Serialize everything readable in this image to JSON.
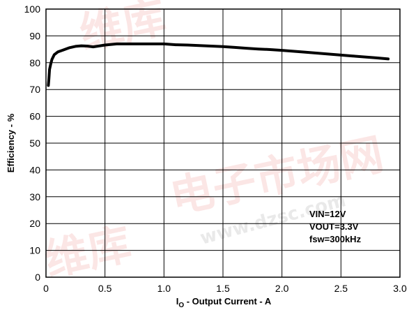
{
  "chart_data": {
    "type": "line",
    "xlabel_main": "I",
    "xlabel_sub": "O",
    "xlabel_rest": " - Output Current - A",
    "ylabel": "Efficiency - %",
    "xlim": [
      0,
      3.0
    ],
    "ylim": [
      0,
      100
    ],
    "x_ticks": [
      "0",
      "0.5",
      "1.0",
      "1.5",
      "2.0",
      "2.5",
      "3.0"
    ],
    "x_tick_values": [
      0,
      0.5,
      1.0,
      1.5,
      2.0,
      2.5,
      3.0
    ],
    "y_ticks": [
      "0",
      "10",
      "20",
      "30",
      "40",
      "50",
      "60",
      "70",
      "80",
      "90",
      "100"
    ],
    "y_tick_values": [
      0,
      10,
      20,
      30,
      40,
      50,
      60,
      70,
      80,
      90,
      100
    ],
    "grid": true,
    "annotations": [
      "VIN=12V",
      "VOUT=3.3V",
      "fsw=300kHz"
    ],
    "series": [
      {
        "x": [
          0.02,
          0.025,
          0.03,
          0.04,
          0.05,
          0.07,
          0.1,
          0.15,
          0.2,
          0.25,
          0.3,
          0.35,
          0.4,
          0.5,
          0.6,
          0.8,
          1.0,
          1.1,
          1.2,
          1.3,
          1.4,
          1.5,
          1.6,
          1.7,
          1.8,
          1.9,
          2.0,
          2.2,
          2.4,
          2.6,
          2.8,
          2.9
        ],
        "y": [
          71.5,
          74,
          77.5,
          79.5,
          81.2,
          83,
          84,
          84.8,
          85.6,
          86.1,
          86.3,
          86.2,
          85.9,
          86.6,
          87,
          87,
          87,
          86.7,
          86.6,
          86.4,
          86.2,
          86,
          85.7,
          85.4,
          85.1,
          84.9,
          84.6,
          83.9,
          83.2,
          82.5,
          81.8,
          81.4
        ]
      }
    ],
    "line_color": "#000000"
  }
}
